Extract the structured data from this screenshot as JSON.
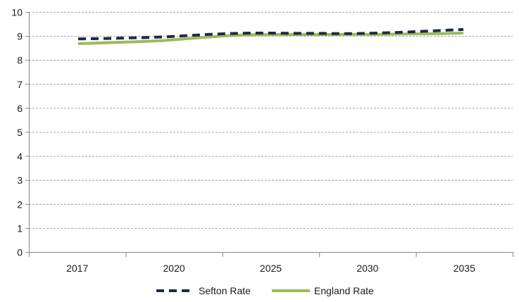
{
  "chart_data": {
    "type": "line",
    "title": "",
    "xlabel": "",
    "ylabel": "",
    "ylim": [
      0,
      10
    ],
    "yticks": [
      0,
      1,
      2,
      3,
      4,
      5,
      6,
      7,
      8,
      9,
      10
    ],
    "x": [
      2017,
      2018,
      2019,
      2020,
      2021,
      2022,
      2023,
      2024,
      2025,
      2026,
      2027,
      2028,
      2029,
      2030,
      2031,
      2032,
      2033,
      2034,
      2035
    ],
    "xtick_labels": [
      "2017",
      "2020",
      "2025",
      "2030",
      "2035"
    ],
    "grid": "horizontal",
    "legend_position": "bottom",
    "series": [
      {
        "name": "Sefton Rate",
        "color": "#1f2a44",
        "style": "dashed",
        "values": [
          8.88,
          8.89,
          8.91,
          8.93,
          8.96,
          9.01,
          9.06,
          9.1,
          9.12,
          9.12,
          9.11,
          9.11,
          9.1,
          9.1,
          9.12,
          9.15,
          9.19,
          9.23,
          9.27
        ]
      },
      {
        "name": "England Rate",
        "color": "#9bbb59",
        "style": "solid",
        "values": [
          8.68,
          8.71,
          8.74,
          8.77,
          8.81,
          8.88,
          8.95,
          9.01,
          9.05,
          9.06,
          9.06,
          9.06,
          9.06,
          9.07,
          9.07,
          9.08,
          9.09,
          9.1,
          9.12
        ]
      }
    ]
  }
}
